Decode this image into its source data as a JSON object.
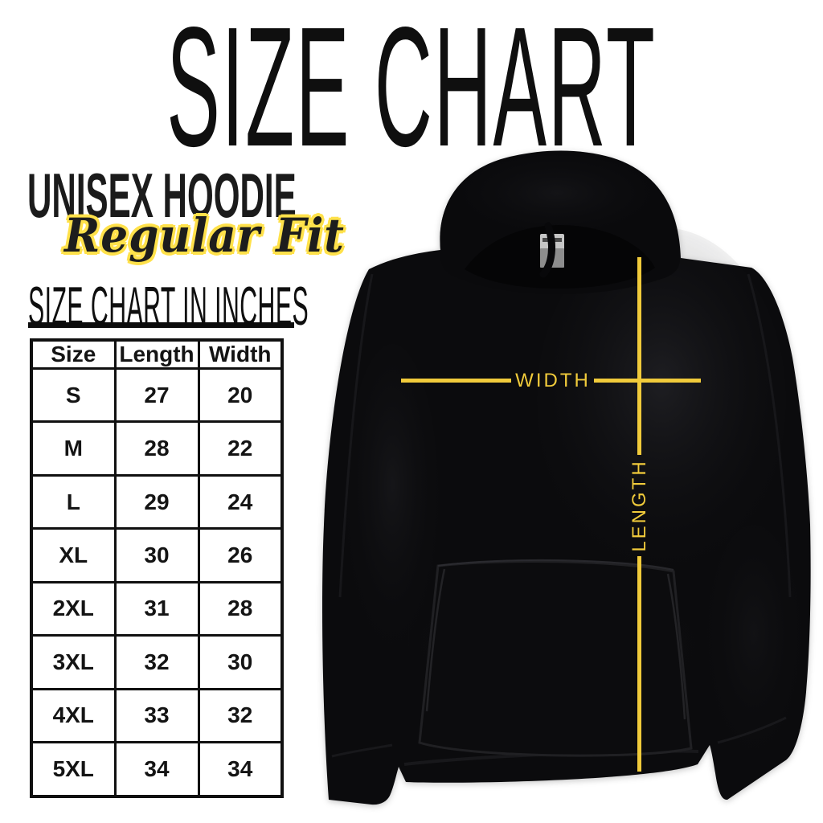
{
  "title": "SIZE CHART",
  "product": {
    "name": "UNISEX HOODIE",
    "fit": "Regular Fit"
  },
  "table_heading": "SIZE CHART IN INCHES",
  "annotations": {
    "width_label": "WIDTH",
    "length_label": "LENGTH"
  },
  "colors": {
    "measure_line_yellow": "#f1cb3b",
    "script_outline_yellow": "#ffe14a",
    "ink_black": "#101010",
    "hoodie_black": "#0b0b0d"
  },
  "chart_data": {
    "type": "table",
    "title": "SIZE CHART",
    "subtitle": "UNISEX HOODIE Regular Fit",
    "units": "inches",
    "columns": [
      "Size",
      "Length",
      "Width"
    ],
    "rows": [
      [
        "S",
        "27",
        "20"
      ],
      [
        "M",
        "28",
        "22"
      ],
      [
        "L",
        "29",
        "24"
      ],
      [
        "XL",
        "30",
        "26"
      ],
      [
        "2XL",
        "31",
        "28"
      ],
      [
        "3XL",
        "32",
        "30"
      ],
      [
        "4XL",
        "33",
        "32"
      ],
      [
        "5XL",
        "34",
        "34"
      ]
    ]
  }
}
